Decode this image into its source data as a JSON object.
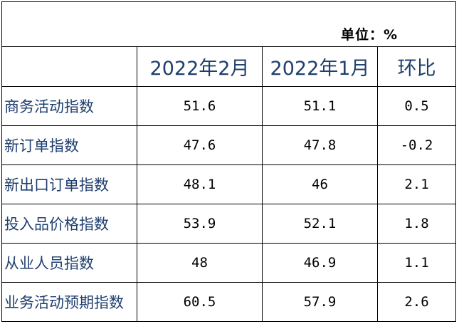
{
  "unit_label": "单位：%",
  "headers": [
    "",
    "2022年2月",
    "2022年1月",
    "环比"
  ],
  "rows": [
    {
      "label": "商务活动指数",
      "feb": "51.6",
      "jan": "51.1",
      "mom": "0.5"
    },
    {
      "label": "新订单指数",
      "feb": "47.6",
      "jan": "47.8",
      "mom": "-0.2"
    },
    {
      "label": "新出口订单指数",
      "feb": "48.1",
      "jan": "46",
      "mom": "2.1"
    },
    {
      "label": "投入品价格指数",
      "feb": "53.9",
      "jan": "52.1",
      "mom": "1.8"
    },
    {
      "label": "从业人员指数",
      "feb": "48",
      "jan": "46.9",
      "mom": "1.1"
    },
    {
      "label": "业务活动预期指数",
      "feb": "60.5",
      "jan": "57.9",
      "mom": "2.6"
    }
  ]
}
